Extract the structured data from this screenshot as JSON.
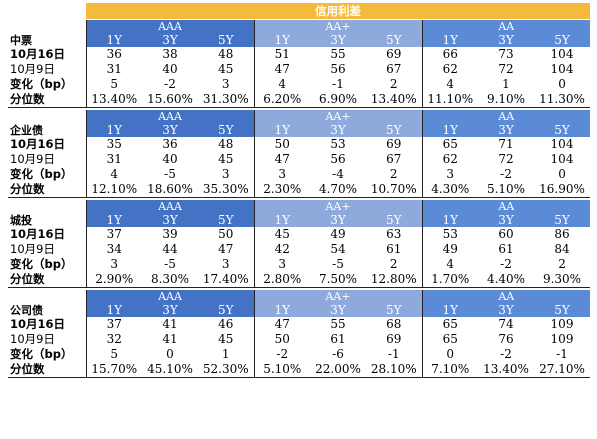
{
  "title": "信用利差",
  "ratings": [
    "AAA",
    "AA+",
    "AA"
  ],
  "tenors": [
    "1Y",
    "3Y",
    "5Y"
  ],
  "sections": [
    {
      "name": "中票",
      "rows": [
        {
          "label": "10月16日",
          "bold": true,
          "values": [
            "36",
            "38",
            "48",
            "51",
            "55",
            "69",
            "66",
            "73",
            "104"
          ]
        },
        {
          "label": "10月9日",
          "bold": false,
          "values": [
            "31",
            "40",
            "45",
            "47",
            "56",
            "67",
            "62",
            "72",
            "104"
          ]
        },
        {
          "label": "变化（bp）",
          "bold": true,
          "values": [
            "5",
            "-2",
            "3",
            "4",
            "-1",
            "2",
            "4",
            "1",
            "0"
          ]
        },
        {
          "label": "分位数",
          "bold": true,
          "values": [
            "13.40%",
            "15.60%",
            "31.30%",
            "6.20%",
            "6.90%",
            "13.40%",
            "11.10%",
            "9.10%",
            "11.30%"
          ]
        }
      ]
    },
    {
      "name": "企业债",
      "rows": [
        {
          "label": "10月16日",
          "bold": true,
          "values": [
            "35",
            "36",
            "48",
            "50",
            "53",
            "69",
            "65",
            "71",
            "104"
          ]
        },
        {
          "label": "10月9日",
          "bold": false,
          "values": [
            "31",
            "40",
            "45",
            "47",
            "56",
            "67",
            "62",
            "72",
            "104"
          ]
        },
        {
          "label": "变化（bp）",
          "bold": true,
          "values": [
            "4",
            "-5",
            "3",
            "3",
            "-4",
            "2",
            "3",
            "-2",
            "0"
          ]
        },
        {
          "label": "分位数",
          "bold": true,
          "values": [
            "12.10%",
            "18.60%",
            "35.30%",
            "2.30%",
            "4.70%",
            "10.70%",
            "4.30%",
            "5.10%",
            "16.90%"
          ]
        }
      ]
    },
    {
      "name": "城投",
      "rows": [
        {
          "label": "10月16日",
          "bold": true,
          "values": [
            "37",
            "39",
            "50",
            "45",
            "49",
            "63",
            "53",
            "60",
            "86"
          ]
        },
        {
          "label": "10月9日",
          "bold": false,
          "values": [
            "34",
            "44",
            "47",
            "42",
            "54",
            "61",
            "49",
            "61",
            "84"
          ]
        },
        {
          "label": "变化（bp）",
          "bold": true,
          "values": [
            "3",
            "-5",
            "3",
            "3",
            "-5",
            "2",
            "4",
            "-2",
            "2"
          ]
        },
        {
          "label": "分位数",
          "bold": true,
          "values": [
            "2.90%",
            "8.30%",
            "17.40%",
            "2.80%",
            "7.50%",
            "12.80%",
            "1.70%",
            "4.40%",
            "9.30%"
          ]
        }
      ]
    },
    {
      "name": "公司债",
      "rows": [
        {
          "label": "10月16日",
          "bold": true,
          "values": [
            "37",
            "41",
            "46",
            "47",
            "55",
            "68",
            "65",
            "74",
            "109"
          ]
        },
        {
          "label": "10月9日",
          "bold": false,
          "values": [
            "32",
            "41",
            "45",
            "50",
            "61",
            "69",
            "65",
            "76",
            "109"
          ]
        },
        {
          "label": "变化（bp）",
          "bold": true,
          "values": [
            "5",
            "0",
            "1",
            "-2",
            "-6",
            "-1",
            "0",
            "-2",
            "-1"
          ]
        },
        {
          "label": "分位数",
          "bold": true,
          "values": [
            "15.70%",
            "45.10%",
            "52.30%",
            "5.10%",
            "22.00%",
            "28.10%",
            "7.10%",
            "13.40%",
            "27.10%"
          ]
        }
      ]
    }
  ],
  "colors": {
    "banner": "#f5b93c",
    "aaa": "#4472c4",
    "aa_plus": "#8ea9db",
    "aa": "#5b8ad6"
  }
}
